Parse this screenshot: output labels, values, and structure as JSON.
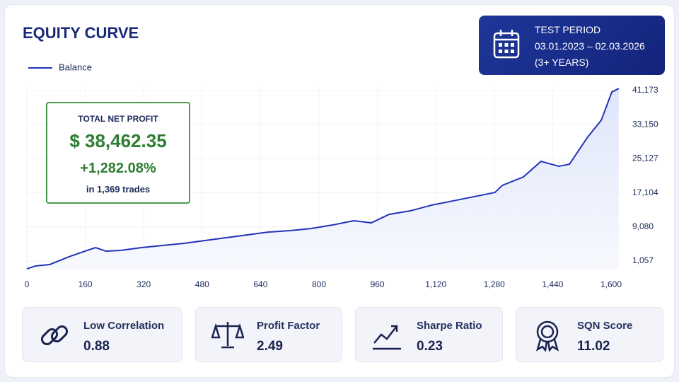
{
  "chart_data": {
    "type": "line",
    "title": "EQUITY CURVE",
    "x": [
      0,
      23,
      62,
      81,
      120,
      159,
      188,
      217,
      256,
      314,
      372,
      430,
      488,
      546,
      604,
      662,
      721,
      779,
      837,
      895,
      943,
      992,
      1050,
      1108,
      1166,
      1224,
      1282,
      1302,
      1360,
      1408,
      1457,
      1486,
      1534,
      1573,
      1602,
      1621
    ],
    "series": [
      {
        "name": "Balance",
        "color": "#2233b8",
        "values": [
          -773,
          -108,
          225,
          891,
          2222,
          3387,
          4218,
          3387,
          3553,
          4218,
          4718,
          5217,
          5883,
          6548,
          7214,
          7879,
          8212,
          8711,
          9543,
          10542,
          10043,
          12039,
          12871,
          14203,
          15201,
          16199,
          17198,
          18862,
          20858,
          24519,
          23354,
          23853,
          30010,
          34170,
          40826,
          41658
        ]
      }
    ],
    "xlim": [
      0,
      1630
    ],
    "xticks": [
      0,
      160,
      320,
      480,
      640,
      800,
      960,
      {
        "value": 1120,
        "label": "1,120"
      },
      {
        "value": 1280,
        "label": "1,280"
      },
      {
        "value": 1440,
        "label": "1,440"
      },
      {
        "value": 1600,
        "label": "1,600"
      }
    ],
    "ylim": [
      -1000,
      42500
    ],
    "yticks": [
      {
        "value": 1057,
        "label": "1,057"
      },
      {
        "value": 9080,
        "label": "9,080"
      },
      {
        "value": 17104,
        "label": "17,104"
      },
      {
        "value": 25127,
        "label": "25,127"
      },
      {
        "value": 33150,
        "label": "33,150"
      },
      {
        "value": 41173,
        "label": "41,173"
      }
    ],
    "grid": true,
    "legend": "top-left"
  },
  "profit_box": {
    "label": "TOTAL NET PROFIT",
    "amount": "$ 38,462.35",
    "percent": "+1,282.08%",
    "trades": "in 1,369 trades"
  },
  "test_period": {
    "label": "TEST PERIOD",
    "range": "03.01.2023 – 02.03.2026",
    "duration": "(3+ YEARS)"
  },
  "metrics": [
    {
      "label": "Low Correlation",
      "value": 0.88
    },
    {
      "label": "Profit Factor",
      "value": 2.49
    },
    {
      "label": "Sharpe Ratio",
      "value": 0.23
    },
    {
      "label": "SQN Score",
      "value": 11.02
    }
  ]
}
